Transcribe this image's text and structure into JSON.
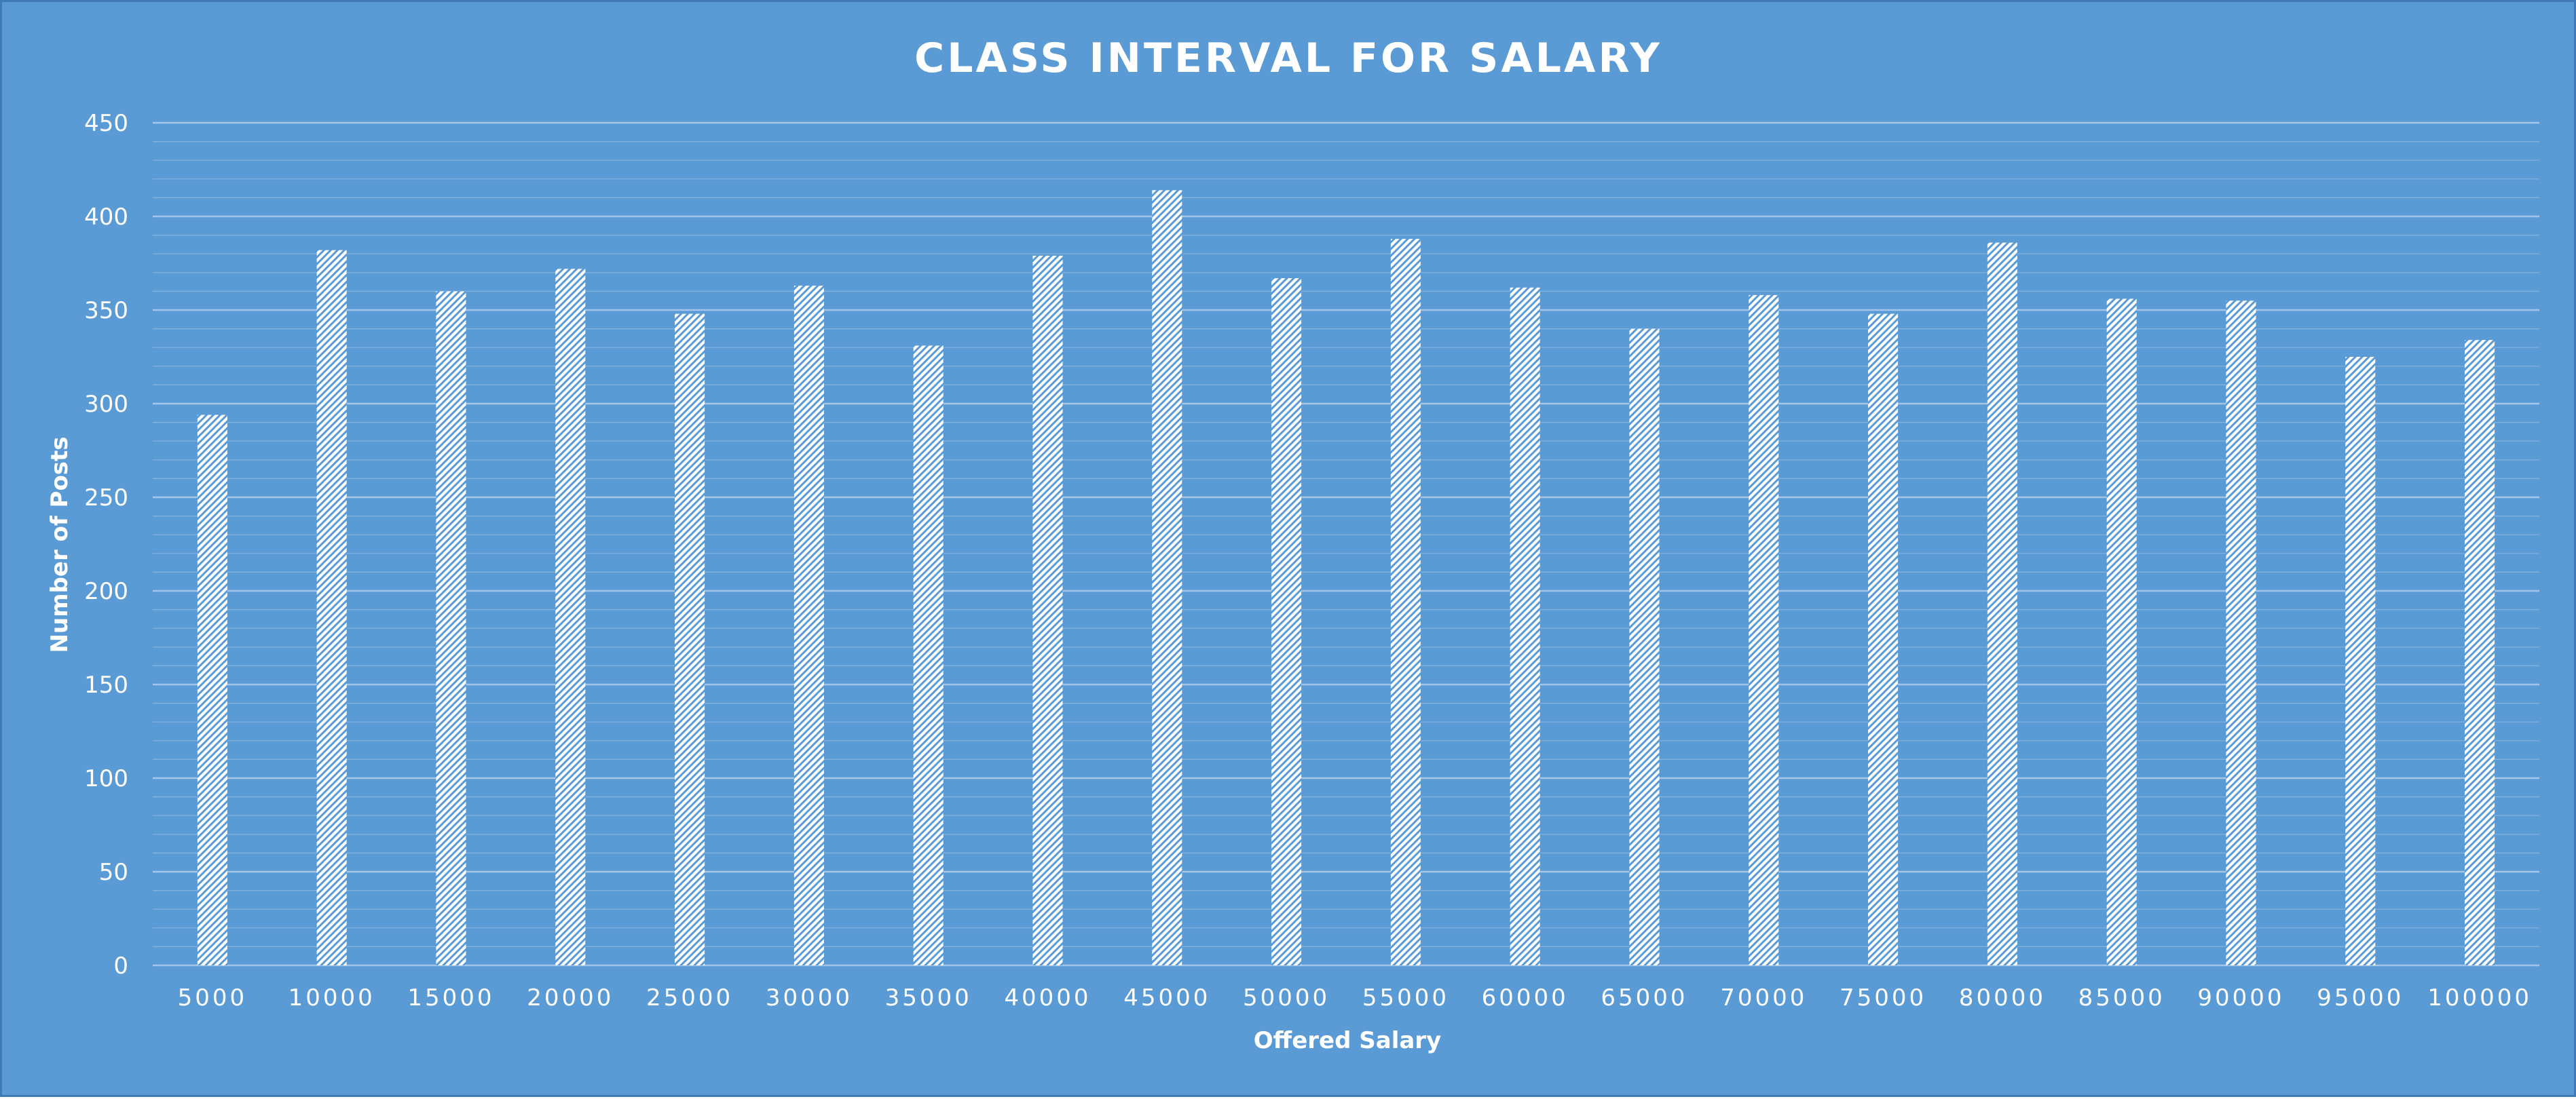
{
  "chart_data": {
    "type": "bar",
    "title": "CLASS INTERVAL FOR SALARY",
    "xlabel": "Offered Salary",
    "ylabel": "Number of Posts",
    "categories": [
      "5000",
      "10000",
      "15000",
      "20000",
      "25000",
      "30000",
      "35000",
      "40000",
      "45000",
      "50000",
      "55000",
      "60000",
      "65000",
      "70000",
      "75000",
      "80000",
      "85000",
      "90000",
      "95000",
      "100000"
    ],
    "values": [
      294,
      382,
      360,
      372,
      348,
      363,
      331,
      379,
      414,
      367,
      388,
      362,
      340,
      358,
      348,
      386,
      356,
      355,
      325,
      334
    ],
    "ylim": [
      0,
      450
    ],
    "yticks": [
      0,
      50,
      100,
      150,
      200,
      250,
      300,
      350,
      400,
      450
    ],
    "grid": "major and minor horizontal",
    "legend": "none",
    "bar_fill": "diagonal white hatch",
    "colors": {
      "background": "#5b9bd5",
      "border": "#3f79b8",
      "bar_hatch": "#ffffff",
      "gridline": "#a9c8ea",
      "text": "#ffffff"
    }
  }
}
